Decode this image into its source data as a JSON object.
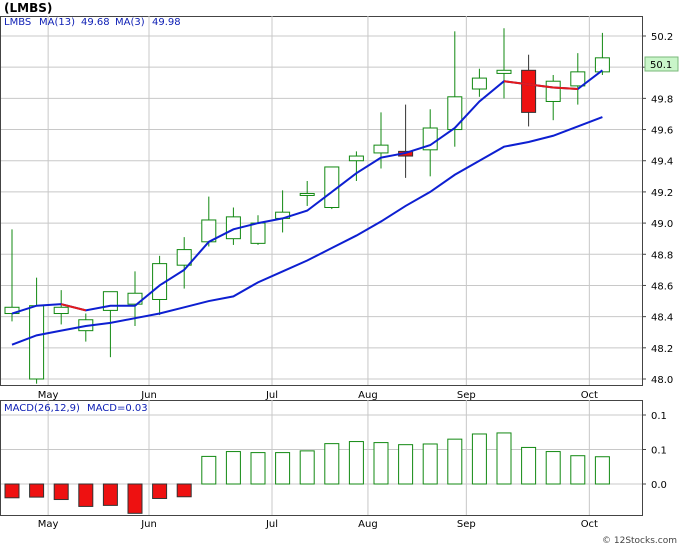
{
  "chart_data": [
    {
      "type": "candlestick",
      "title": "(LMBS)",
      "legend": {
        "symbol": "LMBS",
        "ma13_label": "MA(13)",
        "ma13_value": "49.68",
        "ma3_label": "MA(3)",
        "ma3_value": "49.98"
      },
      "price_badge": "50.1",
      "ylim": [
        47.95,
        50.3
      ],
      "y_ticks": [
        "48.0",
        "48.2",
        "48.4",
        "48.6",
        "48.8",
        "49.0",
        "49.2",
        "49.4",
        "49.6",
        "49.8",
        "50.0",
        "50.2"
      ],
      "x_ticks": [
        {
          "label": "May",
          "x": 1.4
        },
        {
          "label": "Jun",
          "x": 5.5
        },
        {
          "label": "Jul",
          "x": 10.5
        },
        {
          "label": "Aug",
          "x": 14.4
        },
        {
          "label": "Sep",
          "x": 18.4
        },
        {
          "label": "Oct",
          "x": 23.4
        }
      ],
      "candles": [
        {
          "o": 48.42,
          "h": 48.96,
          "l": 48.37,
          "c": 48.46
        },
        {
          "o": 48.0,
          "h": 48.65,
          "l": 47.97,
          "c": 48.47
        },
        {
          "o": 48.42,
          "h": 48.57,
          "l": 48.35,
          "c": 48.46
        },
        {
          "o": 48.31,
          "h": 48.42,
          "l": 48.24,
          "c": 48.38
        },
        {
          "o": 48.44,
          "h": 48.55,
          "l": 48.14,
          "c": 48.56
        },
        {
          "o": 48.48,
          "h": 48.69,
          "l": 48.34,
          "c": 48.55
        },
        {
          "o": 48.51,
          "h": 48.79,
          "l": 48.41,
          "c": 48.74
        },
        {
          "o": 48.73,
          "h": 48.91,
          "l": 48.58,
          "c": 48.83
        },
        {
          "o": 48.88,
          "h": 49.17,
          "l": 48.85,
          "c": 49.02
        },
        {
          "o": 48.9,
          "h": 49.1,
          "l": 48.86,
          "c": 49.04
        },
        {
          "o": 48.87,
          "h": 49.05,
          "l": 48.86,
          "c": 49.0
        },
        {
          "o": 49.03,
          "h": 49.21,
          "l": 48.94,
          "c": 49.07
        },
        {
          "o": 49.19,
          "h": 49.27,
          "l": 49.11,
          "c": 49.19
        },
        {
          "o": 49.1,
          "h": 49.36,
          "l": 49.09,
          "c": 49.36
        },
        {
          "o": 49.4,
          "h": 49.46,
          "l": 49.27,
          "c": 49.43
        },
        {
          "o": 49.45,
          "h": 49.71,
          "l": 49.35,
          "c": 49.5
        },
        {
          "o": 49.46,
          "h": 49.76,
          "l": 49.29,
          "c": 49.43
        },
        {
          "o": 49.47,
          "h": 49.73,
          "l": 49.3,
          "c": 49.61
        },
        {
          "o": 49.6,
          "h": 50.23,
          "l": 49.49,
          "c": 49.81
        },
        {
          "o": 49.86,
          "h": 49.99,
          "l": 49.81,
          "c": 49.93
        },
        {
          "o": 49.96,
          "h": 50.25,
          "l": 49.8,
          "c": 49.98
        },
        {
          "o": 49.98,
          "h": 50.08,
          "l": 49.62,
          "c": 49.71
        },
        {
          "o": 49.78,
          "h": 49.95,
          "l": 49.66,
          "c": 49.91
        },
        {
          "o": 49.88,
          "h": 50.09,
          "l": 49.76,
          "c": 49.97
        },
        {
          "o": 49.97,
          "h": 50.22,
          "l": 49.95,
          "c": 50.06
        }
      ],
      "ma13": [
        [
          0,
          48.22
        ],
        [
          1,
          48.28
        ],
        [
          2,
          48.31
        ],
        [
          3,
          48.34
        ],
        [
          4,
          48.36
        ],
        [
          5,
          48.39
        ],
        [
          6,
          48.42
        ],
        [
          7,
          48.46
        ],
        [
          8,
          48.5
        ],
        [
          9,
          48.53
        ],
        [
          10,
          48.62
        ],
        [
          11,
          48.69
        ],
        [
          12,
          48.76
        ],
        [
          13,
          48.84
        ],
        [
          14,
          48.92
        ],
        [
          15,
          49.01
        ],
        [
          16,
          49.11
        ],
        [
          17,
          49.2
        ],
        [
          18,
          49.31
        ],
        [
          19,
          49.4
        ],
        [
          20,
          49.49
        ],
        [
          21,
          49.52
        ],
        [
          22,
          49.56
        ],
        [
          23,
          49.62
        ],
        [
          24,
          49.68
        ]
      ],
      "ma3": [
        [
          0,
          48.42
        ],
        [
          1,
          48.47
        ],
        [
          2,
          48.48
        ],
        [
          3,
          48.44
        ],
        [
          4,
          48.47
        ],
        [
          5,
          48.47
        ],
        [
          6,
          48.6
        ],
        [
          7,
          48.7
        ],
        [
          8,
          48.88
        ],
        [
          9,
          48.96
        ],
        [
          10,
          49.0
        ],
        [
          11,
          49.03
        ],
        [
          12,
          49.08
        ],
        [
          13,
          49.2
        ],
        [
          14,
          49.32
        ],
        [
          15,
          49.42
        ],
        [
          16,
          49.45
        ],
        [
          17,
          49.5
        ],
        [
          18,
          49.61
        ],
        [
          19,
          49.78
        ],
        [
          20,
          49.91
        ],
        [
          21,
          49.89
        ],
        [
          22,
          49.87
        ],
        [
          23,
          49.86
        ],
        [
          24,
          49.98
        ]
      ],
      "ma3_down_segments": [
        [
          2,
          3
        ],
        [
          20,
          23
        ]
      ]
    },
    {
      "type": "bar",
      "title": "",
      "legend": {
        "macd_params": "MACD(26,12,9)",
        "macd_value": "MACD=0.03"
      },
      "ylim": [
        -0.085,
        0.165
      ],
      "y_ticks": [
        "0.1",
        "0.1",
        "0.0"
      ],
      "y_tick_values": [
        0.15,
        0.1,
        0.05
      ],
      "values": [
        -0.04,
        -0.038,
        -0.045,
        -0.065,
        -0.062,
        -0.085,
        -0.042,
        -0.037,
        0.08,
        0.094,
        0.091,
        0.091,
        0.096,
        0.117,
        0.123,
        0.12,
        0.114,
        0.116,
        0.13,
        0.145,
        0.148,
        0.106,
        0.094,
        0.082,
        0.079
      ]
    }
  ],
  "footer": "© 12Stocks.com",
  "colors": {
    "ma13": "#0d1fd1",
    "ma3_up": "#0d1fd1",
    "ma3_down": "#e41a1a",
    "candle_up_border": "#118811",
    "candle_down_fill": "#ee1111",
    "macd_pos_border": "#118811",
    "macd_neg_fill": "#ee1111",
    "badge_bg": "#c9f5c9",
    "grid": "#c8c8c8",
    "legend_text": "#0f20b5"
  }
}
